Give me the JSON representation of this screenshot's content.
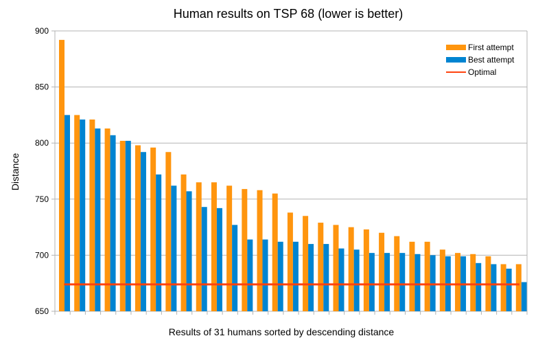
{
  "chart_data": {
    "type": "bar",
    "title": "Human results on TSP 68 (lower is better)",
    "xlabel": "Results of 31 humans sorted by descending distance",
    "ylabel": "Distance",
    "ylim": [
      650,
      900
    ],
    "yticks": [
      650,
      700,
      750,
      800,
      850,
      900
    ],
    "grid": true,
    "legend_position": "top-right",
    "series": [
      {
        "name": "First attempt",
        "color": "#ff950e",
        "values": [
          892,
          825,
          821,
          813,
          802,
          798,
          796,
          792,
          772,
          765,
          765,
          762,
          759,
          758,
          755,
          738,
          735,
          729,
          727,
          725,
          723,
          720,
          717,
          712,
          712,
          705,
          702,
          701,
          699,
          692,
          692
        ]
      },
      {
        "name": "Best attempt",
        "color": "#0084d1",
        "values": [
          825,
          821,
          813,
          807,
          802,
          792,
          772,
          762,
          757,
          743,
          742,
          727,
          714,
          714,
          712,
          712,
          710,
          710,
          706,
          705,
          702,
          702,
          702,
          701,
          700,
          699,
          699,
          693,
          692,
          688,
          676
        ]
      }
    ],
    "lines": [
      {
        "name": "Optimal",
        "color": "#ff420e",
        "value": 674
      }
    ]
  }
}
